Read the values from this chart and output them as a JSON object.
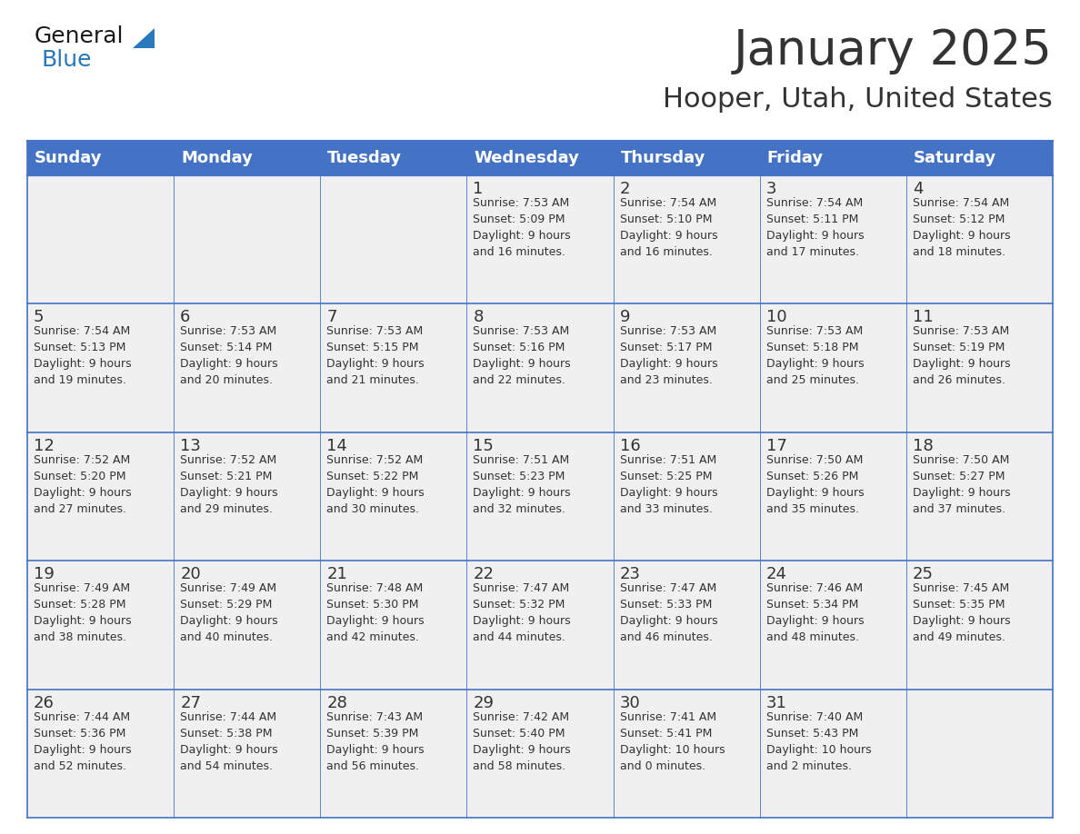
{
  "title": "January 2025",
  "subtitle": "Hooper, Utah, United States",
  "header_bg": "#4472C4",
  "header_text_color": "#FFFFFF",
  "cell_bg": "#F0F0F0",
  "grid_line_color": "#4472C4",
  "text_color": "#333333",
  "days_of_week": [
    "Sunday",
    "Monday",
    "Tuesday",
    "Wednesday",
    "Thursday",
    "Friday",
    "Saturday"
  ],
  "weeks": [
    [
      {
        "day": "",
        "info": ""
      },
      {
        "day": "",
        "info": ""
      },
      {
        "day": "",
        "info": ""
      },
      {
        "day": "1",
        "info": "Sunrise: 7:53 AM\nSunset: 5:09 PM\nDaylight: 9 hours\nand 16 minutes."
      },
      {
        "day": "2",
        "info": "Sunrise: 7:54 AM\nSunset: 5:10 PM\nDaylight: 9 hours\nand 16 minutes."
      },
      {
        "day": "3",
        "info": "Sunrise: 7:54 AM\nSunset: 5:11 PM\nDaylight: 9 hours\nand 17 minutes."
      },
      {
        "day": "4",
        "info": "Sunrise: 7:54 AM\nSunset: 5:12 PM\nDaylight: 9 hours\nand 18 minutes."
      }
    ],
    [
      {
        "day": "5",
        "info": "Sunrise: 7:54 AM\nSunset: 5:13 PM\nDaylight: 9 hours\nand 19 minutes."
      },
      {
        "day": "6",
        "info": "Sunrise: 7:53 AM\nSunset: 5:14 PM\nDaylight: 9 hours\nand 20 minutes."
      },
      {
        "day": "7",
        "info": "Sunrise: 7:53 AM\nSunset: 5:15 PM\nDaylight: 9 hours\nand 21 minutes."
      },
      {
        "day": "8",
        "info": "Sunrise: 7:53 AM\nSunset: 5:16 PM\nDaylight: 9 hours\nand 22 minutes."
      },
      {
        "day": "9",
        "info": "Sunrise: 7:53 AM\nSunset: 5:17 PM\nDaylight: 9 hours\nand 23 minutes."
      },
      {
        "day": "10",
        "info": "Sunrise: 7:53 AM\nSunset: 5:18 PM\nDaylight: 9 hours\nand 25 minutes."
      },
      {
        "day": "11",
        "info": "Sunrise: 7:53 AM\nSunset: 5:19 PM\nDaylight: 9 hours\nand 26 minutes."
      }
    ],
    [
      {
        "day": "12",
        "info": "Sunrise: 7:52 AM\nSunset: 5:20 PM\nDaylight: 9 hours\nand 27 minutes."
      },
      {
        "day": "13",
        "info": "Sunrise: 7:52 AM\nSunset: 5:21 PM\nDaylight: 9 hours\nand 29 minutes."
      },
      {
        "day": "14",
        "info": "Sunrise: 7:52 AM\nSunset: 5:22 PM\nDaylight: 9 hours\nand 30 minutes."
      },
      {
        "day": "15",
        "info": "Sunrise: 7:51 AM\nSunset: 5:23 PM\nDaylight: 9 hours\nand 32 minutes."
      },
      {
        "day": "16",
        "info": "Sunrise: 7:51 AM\nSunset: 5:25 PM\nDaylight: 9 hours\nand 33 minutes."
      },
      {
        "day": "17",
        "info": "Sunrise: 7:50 AM\nSunset: 5:26 PM\nDaylight: 9 hours\nand 35 minutes."
      },
      {
        "day": "18",
        "info": "Sunrise: 7:50 AM\nSunset: 5:27 PM\nDaylight: 9 hours\nand 37 minutes."
      }
    ],
    [
      {
        "day": "19",
        "info": "Sunrise: 7:49 AM\nSunset: 5:28 PM\nDaylight: 9 hours\nand 38 minutes."
      },
      {
        "day": "20",
        "info": "Sunrise: 7:49 AM\nSunset: 5:29 PM\nDaylight: 9 hours\nand 40 minutes."
      },
      {
        "day": "21",
        "info": "Sunrise: 7:48 AM\nSunset: 5:30 PM\nDaylight: 9 hours\nand 42 minutes."
      },
      {
        "day": "22",
        "info": "Sunrise: 7:47 AM\nSunset: 5:32 PM\nDaylight: 9 hours\nand 44 minutes."
      },
      {
        "day": "23",
        "info": "Sunrise: 7:47 AM\nSunset: 5:33 PM\nDaylight: 9 hours\nand 46 minutes."
      },
      {
        "day": "24",
        "info": "Sunrise: 7:46 AM\nSunset: 5:34 PM\nDaylight: 9 hours\nand 48 minutes."
      },
      {
        "day": "25",
        "info": "Sunrise: 7:45 AM\nSunset: 5:35 PM\nDaylight: 9 hours\nand 49 minutes."
      }
    ],
    [
      {
        "day": "26",
        "info": "Sunrise: 7:44 AM\nSunset: 5:36 PM\nDaylight: 9 hours\nand 52 minutes."
      },
      {
        "day": "27",
        "info": "Sunrise: 7:44 AM\nSunset: 5:38 PM\nDaylight: 9 hours\nand 54 minutes."
      },
      {
        "day": "28",
        "info": "Sunrise: 7:43 AM\nSunset: 5:39 PM\nDaylight: 9 hours\nand 56 minutes."
      },
      {
        "day": "29",
        "info": "Sunrise: 7:42 AM\nSunset: 5:40 PM\nDaylight: 9 hours\nand 58 minutes."
      },
      {
        "day": "30",
        "info": "Sunrise: 7:41 AM\nSunset: 5:41 PM\nDaylight: 10 hours\nand 0 minutes."
      },
      {
        "day": "31",
        "info": "Sunrise: 7:40 AM\nSunset: 5:43 PM\nDaylight: 10 hours\nand 2 minutes."
      },
      {
        "day": "",
        "info": ""
      }
    ]
  ],
  "logo_general_color": "#1a1a1a",
  "logo_blue_color": "#2878BE",
  "logo_triangle_color": "#2878BE",
  "title_fontsize": 38,
  "subtitle_fontsize": 22,
  "header_fontsize": 13,
  "day_num_fontsize": 13,
  "info_fontsize": 9
}
